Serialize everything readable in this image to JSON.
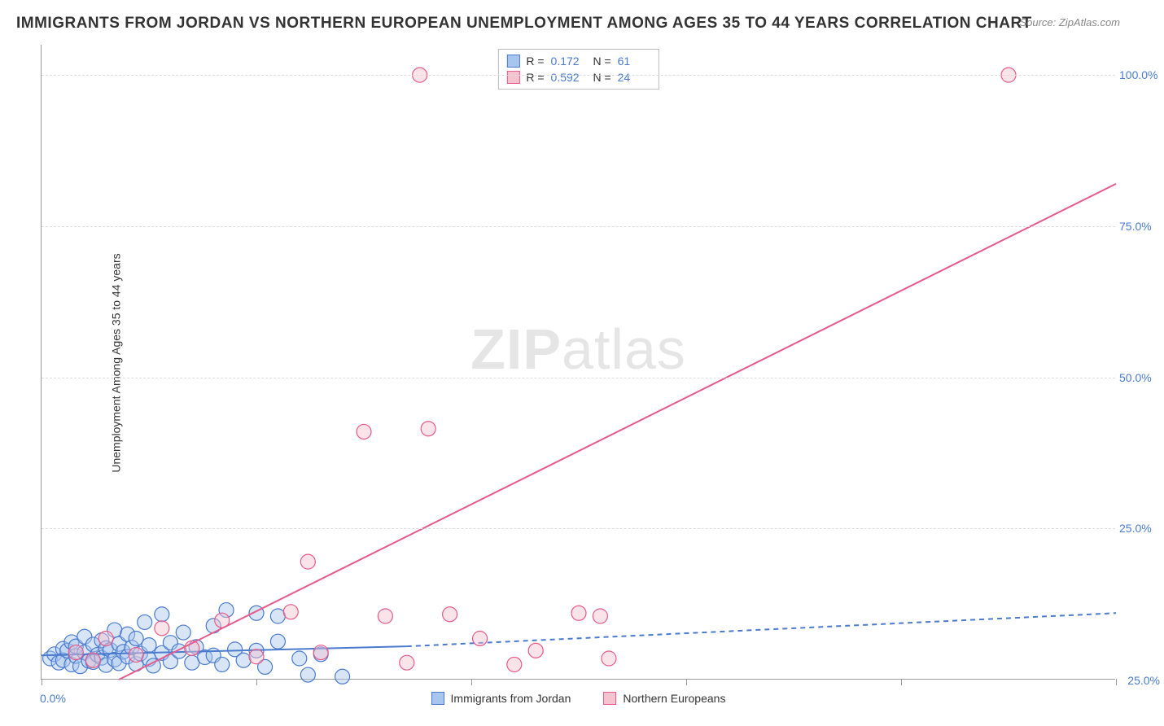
{
  "title": "IMMIGRANTS FROM JORDAN VS NORTHERN EUROPEAN UNEMPLOYMENT AMONG AGES 35 TO 44 YEARS CORRELATION CHART",
  "source": "Source: ZipAtlas.com",
  "y_axis_label": "Unemployment Among Ages 35 to 44 years",
  "watermark_left": "ZIP",
  "watermark_right": "atlas",
  "chart": {
    "type": "scatter",
    "background_color": "#ffffff",
    "grid_color": "#dddddd",
    "axis_color": "#999999",
    "xlim": [
      0,
      25
    ],
    "ylim": [
      0,
      105
    ],
    "x_ticks": [
      0,
      5,
      10,
      15,
      20,
      25
    ],
    "x_tick_labels": {
      "0": "0.0%",
      "25": "25.0%"
    },
    "y_ticks": [
      25,
      50,
      75,
      100
    ],
    "y_tick_labels": {
      "25": "25.0%",
      "50": "50.0%",
      "75": "75.0%",
      "100": "100.0%"
    },
    "tick_label_color": "#4a7bd0",
    "tick_fontsize": 14,
    "marker_radius": 9,
    "marker_opacity": 0.45,
    "series": [
      {
        "name": "Immigrants from Jordan",
        "color_fill": "#a8c5ed",
        "color_stroke": "#4a7bd0",
        "R": "0.172",
        "N": "61",
        "trend": {
          "solid": {
            "x1": 0,
            "y1": 4.0,
            "x2": 8.5,
            "y2": 5.5
          },
          "dashed": {
            "x1": 8.5,
            "y1": 5.5,
            "x2": 25,
            "y2": 11.0
          },
          "width": 2
        },
        "points": [
          [
            0.2,
            3.5
          ],
          [
            0.3,
            4.2
          ],
          [
            0.4,
            2.8
          ],
          [
            0.5,
            5.1
          ],
          [
            0.5,
            3.2
          ],
          [
            0.6,
            4.8
          ],
          [
            0.7,
            2.5
          ],
          [
            0.7,
            6.2
          ],
          [
            0.8,
            3.9
          ],
          [
            0.8,
            5.5
          ],
          [
            0.9,
            2.2
          ],
          [
            1.0,
            4.5
          ],
          [
            1.0,
            7.1
          ],
          [
            1.1,
            3.1
          ],
          [
            1.2,
            5.8
          ],
          [
            1.2,
            2.9
          ],
          [
            1.3,
            4.1
          ],
          [
            1.4,
            6.5
          ],
          [
            1.4,
            3.6
          ],
          [
            1.5,
            5.2
          ],
          [
            1.5,
            2.4
          ],
          [
            1.6,
            4.9
          ],
          [
            1.7,
            8.2
          ],
          [
            1.7,
            3.3
          ],
          [
            1.8,
            5.9
          ],
          [
            1.8,
            2.7
          ],
          [
            1.9,
            4.6
          ],
          [
            2.0,
            7.5
          ],
          [
            2.0,
            3.8
          ],
          [
            2.1,
            5.3
          ],
          [
            2.2,
            2.6
          ],
          [
            2.2,
            6.8
          ],
          [
            2.3,
            4.3
          ],
          [
            2.4,
            9.5
          ],
          [
            2.5,
            3.4
          ],
          [
            2.5,
            5.7
          ],
          [
            2.6,
            2.3
          ],
          [
            2.8,
            4.4
          ],
          [
            2.8,
            10.8
          ],
          [
            3.0,
            6.1
          ],
          [
            3.0,
            3.0
          ],
          [
            3.2,
            4.7
          ],
          [
            3.3,
            7.8
          ],
          [
            3.5,
            2.8
          ],
          [
            3.6,
            5.4
          ],
          [
            3.8,
            3.7
          ],
          [
            4.0,
            8.9
          ],
          [
            4.0,
            4.0
          ],
          [
            4.2,
            2.5
          ],
          [
            4.3,
            11.5
          ],
          [
            4.5,
            5.0
          ],
          [
            4.7,
            3.2
          ],
          [
            5.0,
            11.0
          ],
          [
            5.0,
            4.8
          ],
          [
            5.2,
            2.1
          ],
          [
            5.5,
            6.3
          ],
          [
            5.5,
            10.5
          ],
          [
            6.0,
            3.5
          ],
          [
            6.2,
            0.8
          ],
          [
            6.5,
            4.2
          ],
          [
            7.0,
            0.5
          ]
        ]
      },
      {
        "name": "Northern Europeans",
        "color_fill": "#f5c2cf",
        "color_stroke": "#e75a8a",
        "R": "0.592",
        "N": "24",
        "trend": {
          "solid": {
            "x1": 1.8,
            "y1": 0,
            "x2": 25,
            "y2": 82
          },
          "width": 2
        },
        "points": [
          [
            0.8,
            4.5
          ],
          [
            1.2,
            3.2
          ],
          [
            1.5,
            6.8
          ],
          [
            2.2,
            4.1
          ],
          [
            2.8,
            8.5
          ],
          [
            3.5,
            5.2
          ],
          [
            4.2,
            9.8
          ],
          [
            5.0,
            3.8
          ],
          [
            5.8,
            11.2
          ],
          [
            6.2,
            19.5
          ],
          [
            6.5,
            4.5
          ],
          [
            7.5,
            41.0
          ],
          [
            8.0,
            10.5
          ],
          [
            8.5,
            2.8
          ],
          [
            8.8,
            100.0
          ],
          [
            9.0,
            41.5
          ],
          [
            9.5,
            10.8
          ],
          [
            10.2,
            6.8
          ],
          [
            11.0,
            2.5
          ],
          [
            11.5,
            4.8
          ],
          [
            12.5,
            11.0
          ],
          [
            13.0,
            10.5
          ],
          [
            13.2,
            3.5
          ],
          [
            22.5,
            100.0
          ]
        ]
      }
    ]
  },
  "bottom_legend": [
    {
      "label": "Immigrants from Jordan",
      "fill": "#a8c5ed",
      "stroke": "#4a7bd0"
    },
    {
      "label": "Northern Europeans",
      "fill": "#f5c2cf",
      "stroke": "#e75a8a"
    }
  ]
}
